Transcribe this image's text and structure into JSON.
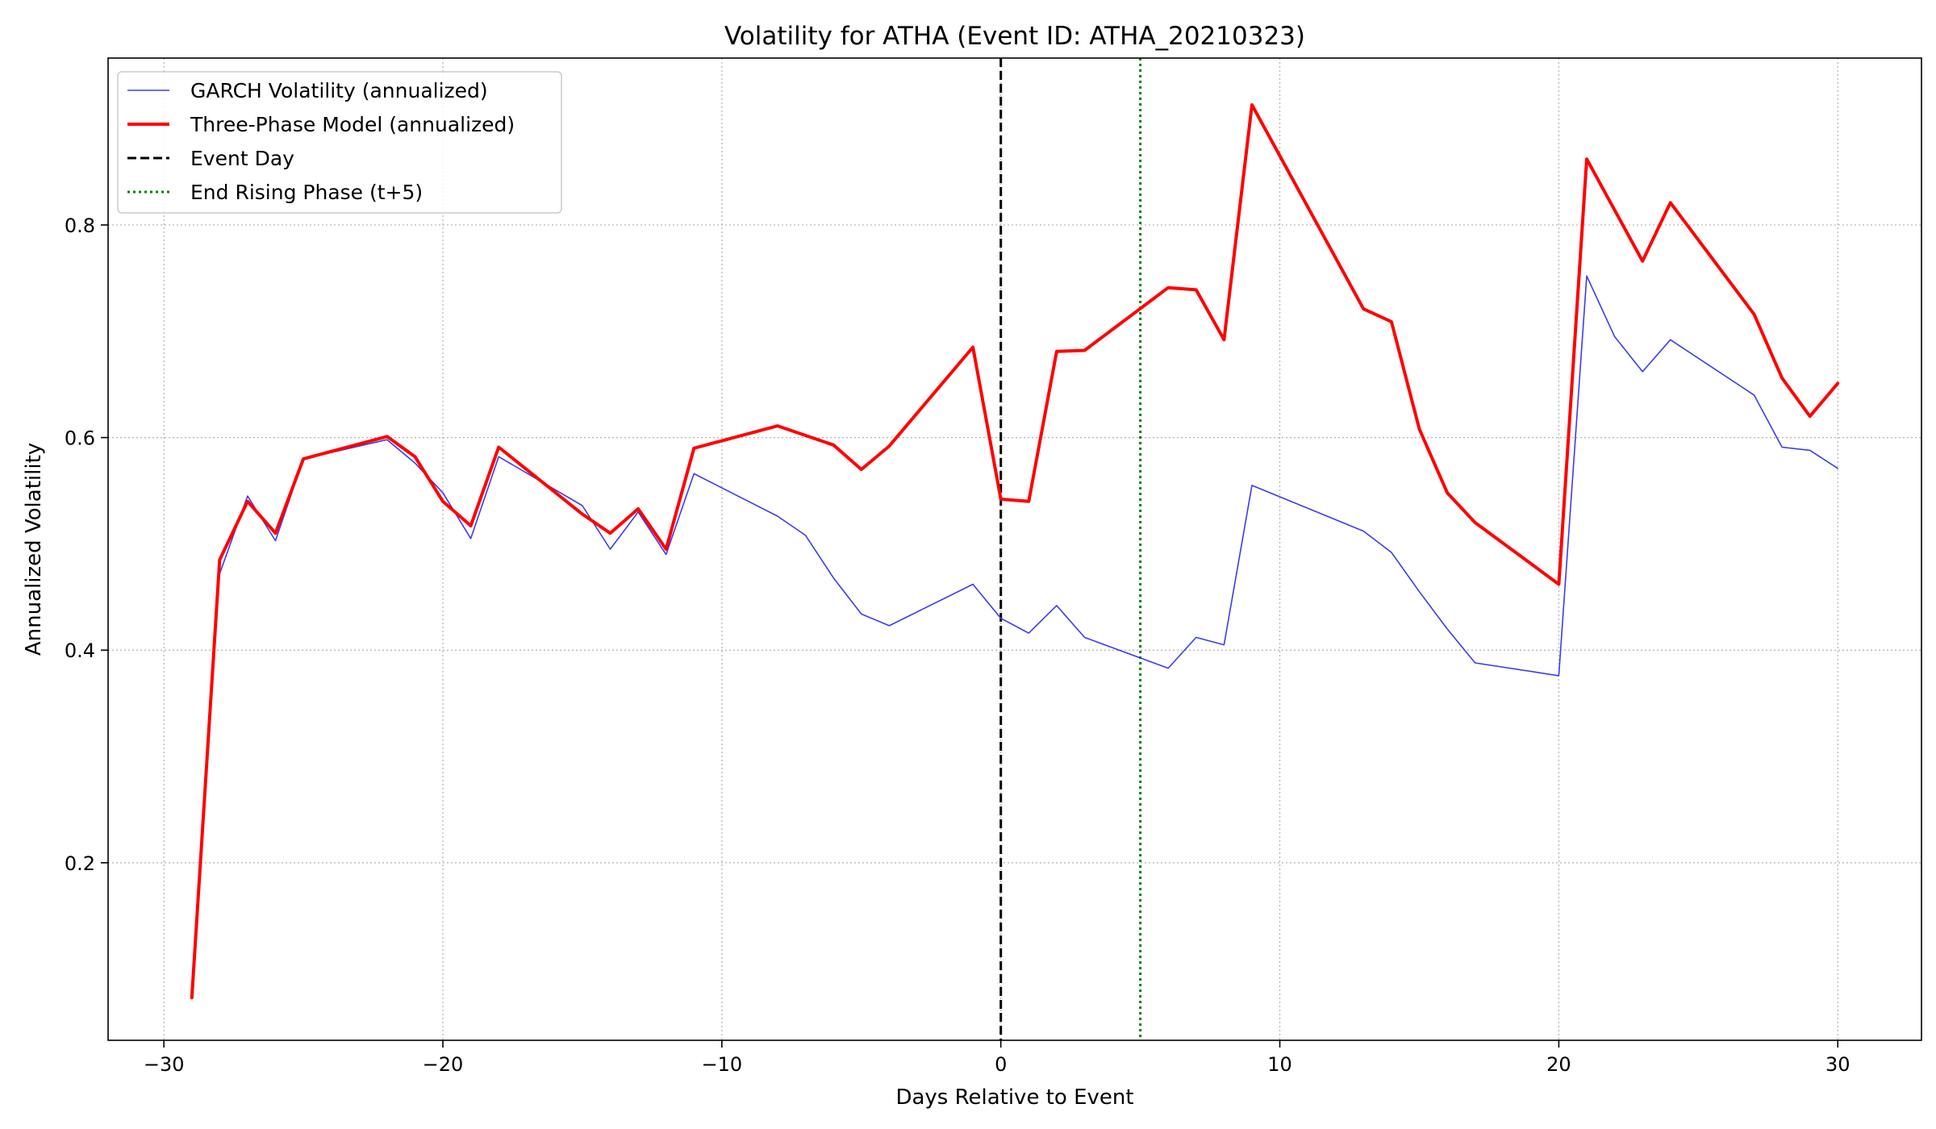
{
  "chart_data": {
    "type": "line",
    "title": "Volatility for ATHA (Event ID: ATHA_20210323)",
    "xlabel": "Days Relative to Event",
    "ylabel": "Annualized Volatility",
    "xlim": [
      -32,
      33
    ],
    "ylim": [
      0.033,
      0.957
    ],
    "x_ticks": [
      -30,
      -20,
      -10,
      0,
      10,
      20,
      30
    ],
    "x_tick_labels": [
      "−30",
      "−20",
      "−10",
      "0",
      "10",
      "20",
      "30"
    ],
    "y_ticks": [
      0.2,
      0.4,
      0.6,
      0.8
    ],
    "y_tick_labels": [
      "0.2",
      "0.4",
      "0.6",
      "0.8"
    ],
    "grid": true,
    "legend_position": "upper-left",
    "series": [
      {
        "name": "GARCH Volatility (annualized)",
        "color": "#3b3bf0",
        "style": "solid-thin",
        "points": [
          [
            -28,
            0.472
          ],
          [
            -27,
            0.545
          ],
          [
            -26,
            0.503
          ],
          [
            -25,
            0.58
          ],
          [
            -22,
            0.598
          ],
          [
            -21,
            0.576
          ],
          [
            -20,
            0.548
          ],
          [
            -19,
            0.505
          ],
          [
            -18,
            0.582
          ],
          [
            -15,
            0.536
          ],
          [
            -14,
            0.495
          ],
          [
            -13,
            0.53
          ],
          [
            -12,
            0.49
          ],
          [
            -11,
            0.566
          ],
          [
            -8,
            0.526
          ],
          [
            -7,
            0.508
          ],
          [
            -6,
            0.468
          ],
          [
            -5,
            0.434
          ],
          [
            -4,
            0.423
          ],
          [
            -1,
            0.462
          ],
          [
            0,
            0.43
          ],
          [
            1,
            0.416
          ],
          [
            2,
            0.442
          ],
          [
            3,
            0.412
          ],
          [
            6,
            0.383
          ],
          [
            7,
            0.412
          ],
          [
            8,
            0.405
          ],
          [
            9,
            0.555
          ],
          [
            13,
            0.512
          ],
          [
            14,
            0.492
          ],
          [
            15,
            0.455
          ],
          [
            16,
            0.42
          ],
          [
            17,
            0.388
          ],
          [
            20,
            0.376
          ],
          [
            21,
            0.752
          ],
          [
            22,
            0.695
          ],
          [
            23,
            0.662
          ],
          [
            24,
            0.692
          ],
          [
            27,
            0.64
          ],
          [
            28,
            0.591
          ],
          [
            29,
            0.588
          ],
          [
            30,
            0.571
          ]
        ]
      },
      {
        "name": "Three-Phase Model (annualized)",
        "color": "#ff0000",
        "style": "solid-thick",
        "points": [
          [
            -29,
            0.073
          ],
          [
            -28,
            0.485
          ],
          [
            -27,
            0.54
          ],
          [
            -26,
            0.51
          ],
          [
            -25,
            0.58
          ],
          [
            -22,
            0.601
          ],
          [
            -21,
            0.582
          ],
          [
            -20,
            0.54
          ],
          [
            -19,
            0.517
          ],
          [
            -18,
            0.591
          ],
          [
            -15,
            0.528
          ],
          [
            -14,
            0.51
          ],
          [
            -13,
            0.533
          ],
          [
            -12,
            0.495
          ],
          [
            -11,
            0.59
          ],
          [
            -8,
            0.611
          ],
          [
            -7,
            0.602
          ],
          [
            -6,
            0.593
          ],
          [
            -5,
            0.57
          ],
          [
            -4,
            0.592
          ],
          [
            -1,
            0.685
          ],
          [
            0,
            0.542
          ],
          [
            1,
            0.54
          ],
          [
            2,
            0.681
          ],
          [
            3,
            0.682
          ],
          [
            6,
            0.741
          ],
          [
            7,
            0.739
          ],
          [
            8,
            0.692
          ],
          [
            9,
            0.913
          ],
          [
            13,
            0.721
          ],
          [
            14,
            0.709
          ],
          [
            15,
            0.608
          ],
          [
            16,
            0.548
          ],
          [
            17,
            0.52
          ],
          [
            20,
            0.462
          ],
          [
            21,
            0.862
          ],
          [
            23,
            0.766
          ],
          [
            24,
            0.821
          ],
          [
            27,
            0.716
          ],
          [
            28,
            0.656
          ],
          [
            29,
            0.62
          ],
          [
            30,
            0.651
          ]
        ]
      }
    ],
    "vlines": [
      {
        "name": "Event Day",
        "x": 0,
        "color": "#000000",
        "style": "dashed"
      },
      {
        "name": "End Rising Phase (t+5)",
        "x": 5,
        "color": "#008000",
        "style": "dotted"
      }
    ]
  }
}
